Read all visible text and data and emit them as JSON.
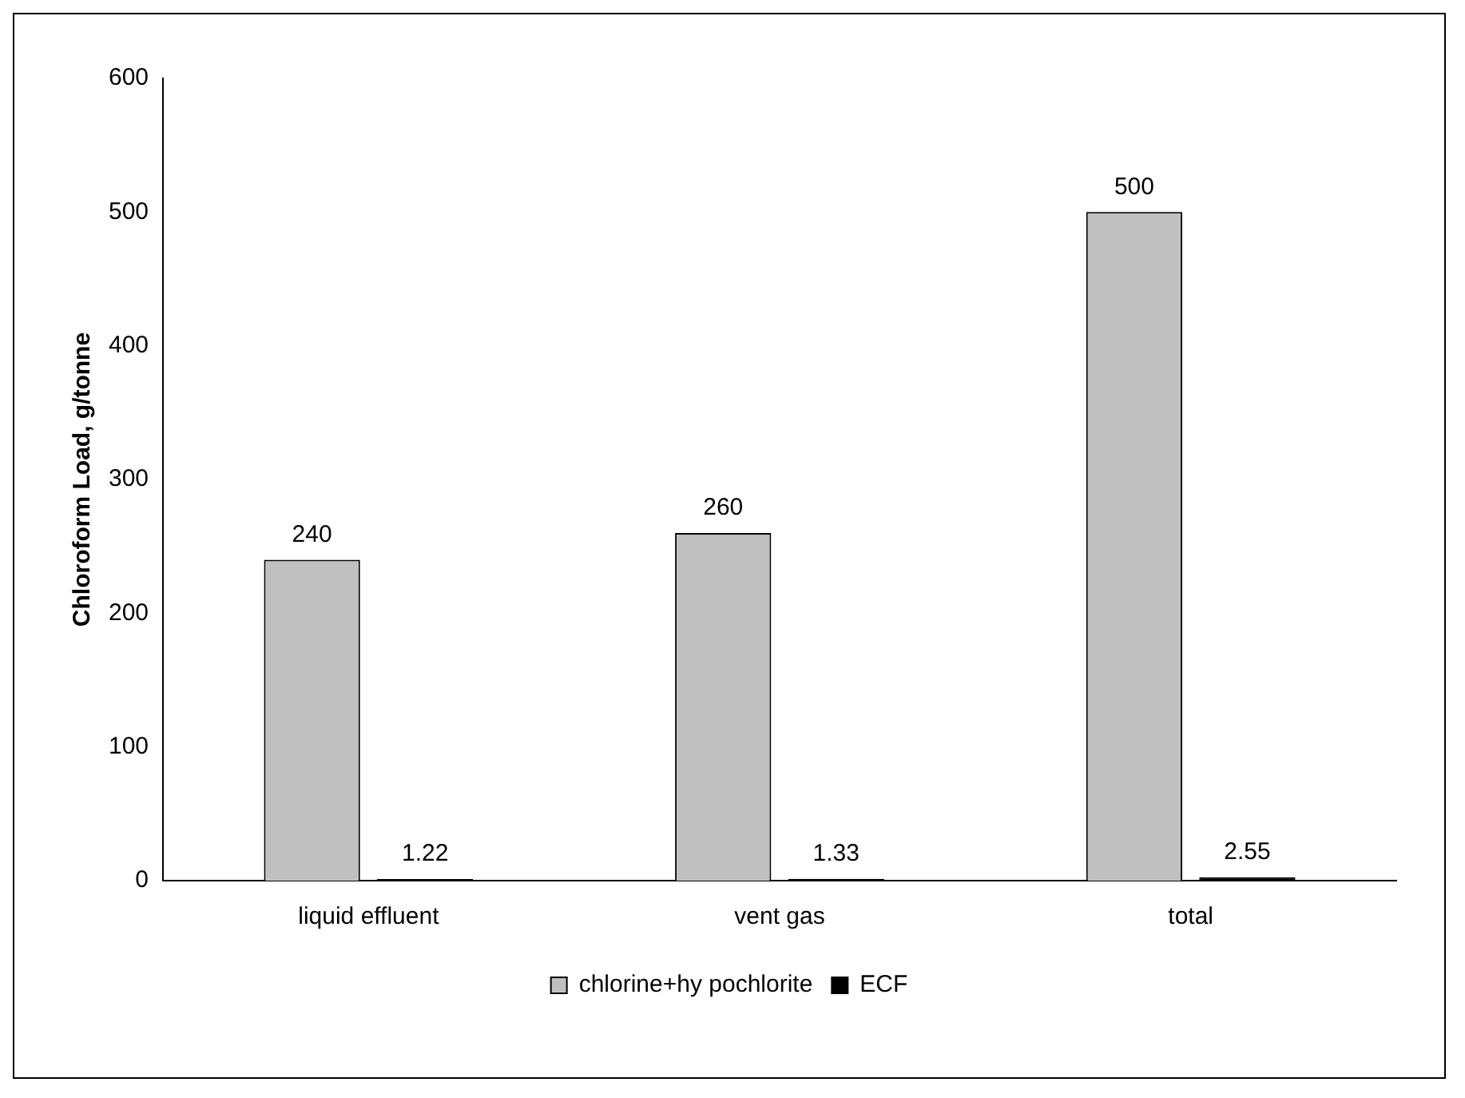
{
  "chart_data": {
    "type": "bar",
    "ylabel": "Chloroform Load, g/tonne",
    "categories": [
      "liquid effluent",
      "vent gas",
      "total"
    ],
    "series": [
      {
        "name": "chlorine+hy pochlorite",
        "color": "#c0c0c0",
        "values": [
          240,
          260,
          500
        ]
      },
      {
        "name": "ECF",
        "color": "#000000",
        "values": [
          1.22,
          1.33,
          2.55
        ]
      }
    ],
    "ylim": [
      0,
      600
    ],
    "yticks": [
      0,
      100,
      200,
      300,
      400,
      500,
      600
    ],
    "grid": false,
    "legend": "bottom",
    "data_labels": true
  }
}
